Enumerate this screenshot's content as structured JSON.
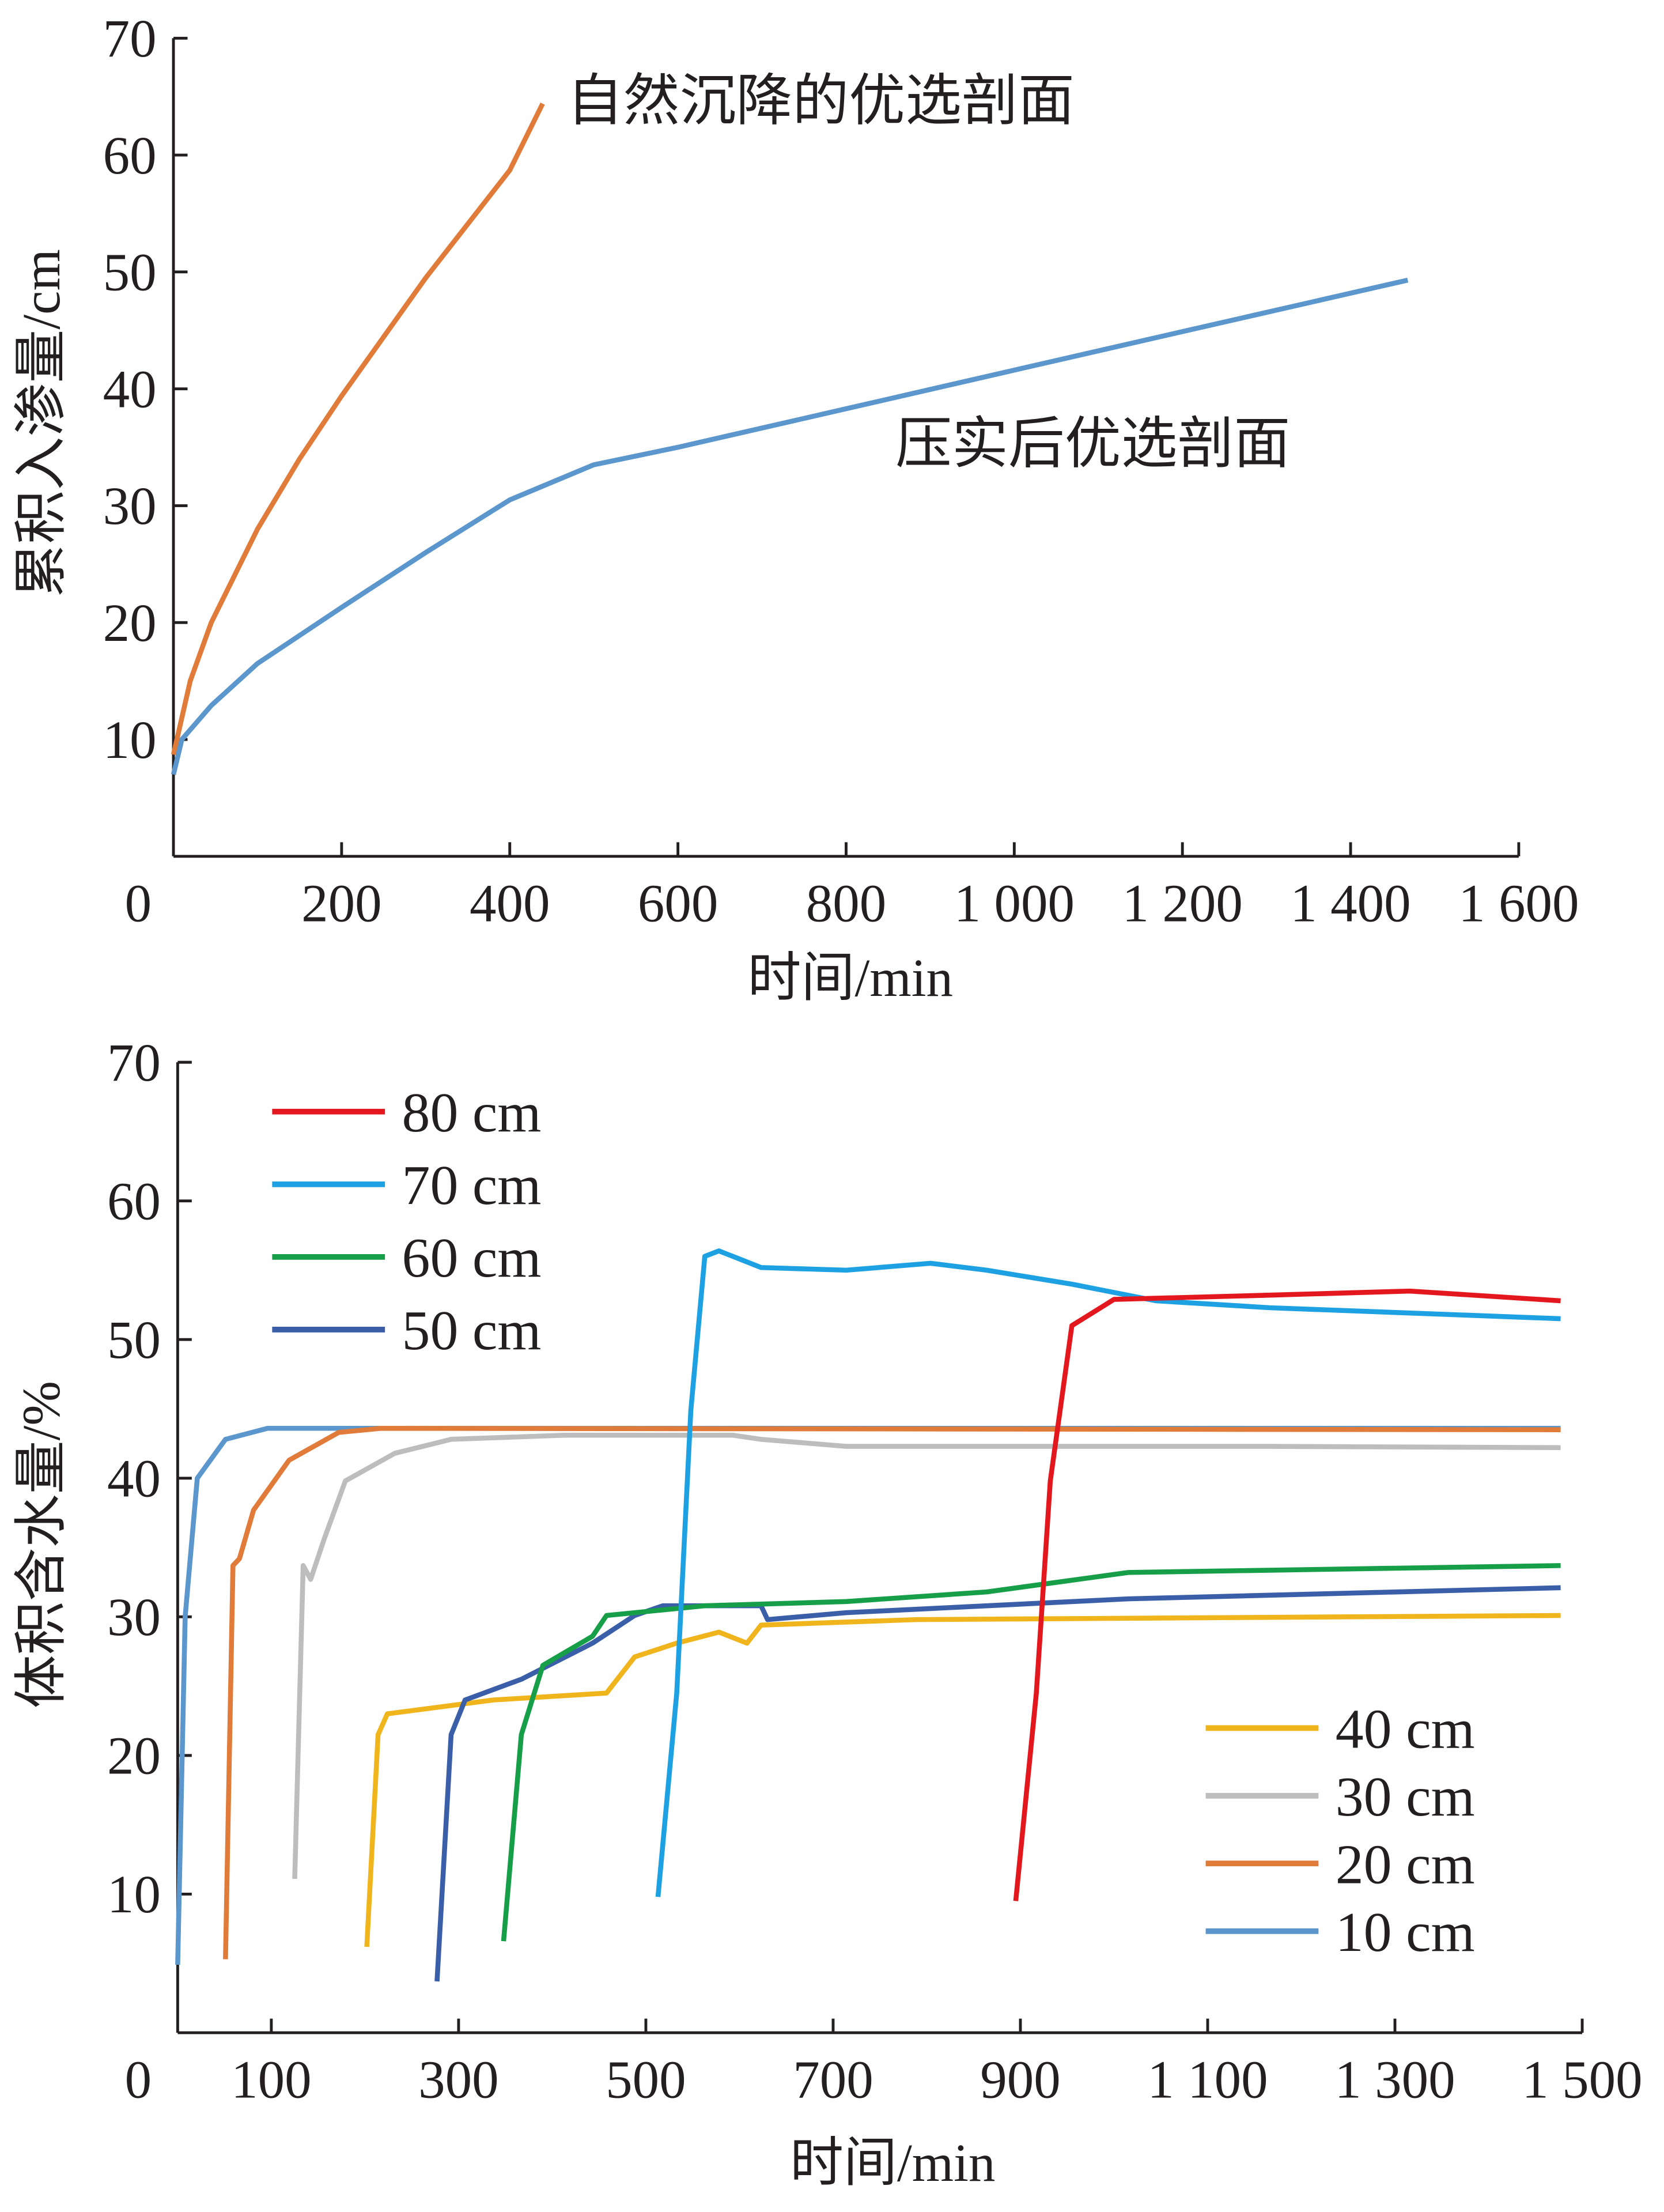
{
  "chart_data": [
    {
      "type": "line",
      "title": "",
      "xlabel": "时间/min",
      "ylabel": "累积入渗量/cm",
      "xlim": [
        0,
        1600
      ],
      "ylim": [
        0,
        70
      ],
      "xticks": [
        "0",
        "200",
        "400",
        "600",
        "800",
        "1 000",
        "1 200",
        "1 400",
        "1 600"
      ],
      "xtick_values": [
        0,
        200,
        400,
        600,
        800,
        1000,
        1200,
        1400,
        1600
      ],
      "yticks": [
        "10",
        "20",
        "30",
        "40",
        "50",
        "60",
        "70"
      ],
      "ytick_values": [
        10,
        20,
        30,
        40,
        50,
        60,
        70
      ],
      "series": [
        {
          "name": "自然沉降的优选剖面",
          "color": "#e07b39",
          "x": [
            0,
            20,
            45,
            100,
            150,
            200,
            300,
            400,
            439
          ],
          "y": [
            8.7,
            15,
            20,
            28,
            34,
            39.4,
            49.5,
            58.7,
            64.4
          ]
        },
        {
          "name": "压实后优选剖面",
          "color": "#5b96cc",
          "x": [
            0,
            10,
            45,
            100,
            200,
            300,
            400,
            500,
            600,
            800,
            1000,
            1200,
            1468
          ],
          "y": [
            7,
            10,
            12.9,
            16.5,
            21.3,
            26,
            30.5,
            33.5,
            35,
            38.3,
            41.6,
            44.9,
            49.3
          ]
        }
      ],
      "annotations": [
        "自然沉降的优选剖面",
        "压实后优选剖面"
      ]
    },
    {
      "type": "line",
      "title": "",
      "xlabel": "时间/min",
      "ylabel": "体积含水量/%",
      "xlim": [
        0,
        1500
      ],
      "ylim": [
        0,
        70
      ],
      "xticks": [
        "0",
        "100",
        "300",
        "500",
        "700",
        "900",
        "1 100",
        "1 300",
        "1 500"
      ],
      "xtick_values": [
        0,
        100,
        300,
        500,
        700,
        900,
        1100,
        1300,
        1500
      ],
      "yticks": [
        "10",
        "20",
        "30",
        "40",
        "50",
        "60",
        "70"
      ],
      "ytick_values": [
        10,
        20,
        30,
        40,
        50,
        60,
        70
      ],
      "legend": [
        {
          "label": "80 cm",
          "color": "#e3171e"
        },
        {
          "label": "70 cm",
          "color": "#1da1e2"
        },
        {
          "label": "60 cm",
          "color": "#179e48"
        },
        {
          "label": "50 cm",
          "color": "#3b5ea8"
        },
        {
          "label": "40 cm",
          "color": "#f0b51d"
        },
        {
          "label": "30 cm",
          "color": "#bdbdbd"
        },
        {
          "label": "20 cm",
          "color": "#e07b39"
        },
        {
          "label": "10 cm",
          "color": "#5b96cc"
        }
      ],
      "series": [
        {
          "name": "10 cm",
          "color": "#5b96cc",
          "x": [
            0,
            8,
            21,
            51,
            96,
            1477
          ],
          "y": [
            4.9,
            30,
            40,
            42.8,
            43.6,
            43.6
          ]
        },
        {
          "name": "20 cm",
          "color": "#e07b39",
          "x": [
            51,
            59,
            66,
            81,
            119,
            172,
            217,
            1477
          ],
          "y": [
            5.3,
            33.7,
            34.2,
            37.7,
            41.3,
            43.3,
            43.6,
            43.5
          ]
        },
        {
          "name": "30 cm",
          "color": "#bdbdbd",
          "x": [
            125,
            134,
            142,
            157,
            179,
            232,
            292,
            413,
            593,
            623,
            714,
            1166,
            1477
          ],
          "y": [
            11.1,
            33.7,
            32.7,
            35.7,
            39.8,
            41.8,
            42.8,
            43.1,
            43.1,
            42.8,
            42.3,
            42.3,
            42.2
          ]
        },
        {
          "name": "40 cm",
          "color": "#f0b51d",
          "x": [
            202,
            214,
            224,
            337,
            458,
            488,
            533,
            578,
            608,
            623,
            789,
            1477
          ],
          "y": [
            6.2,
            21.5,
            23,
            24,
            24.5,
            27.1,
            28.1,
            28.9,
            28.1,
            29.4,
            29.8,
            30.1
          ]
        },
        {
          "name": "50 cm",
          "color": "#3b5ea8",
          "x": [
            277,
            292,
            307,
            367,
            443,
            488,
            518,
            623,
            630,
            714,
            1015,
            1477
          ],
          "y": [
            3.7,
            21.5,
            24,
            25.5,
            28.1,
            30.1,
            30.8,
            30.8,
            29.8,
            30.3,
            31.3,
            32.1
          ]
        },
        {
          "name": "60 cm",
          "color": "#179e48",
          "x": [
            348,
            367,
            390,
            443,
            458,
            563,
            714,
            864,
            1015,
            1477
          ],
          "y": [
            6.6,
            21.5,
            26.5,
            28.6,
            30.1,
            30.8,
            31.1,
            31.8,
            33.2,
            33.7
          ]
        },
        {
          "name": "70 cm",
          "color": "#1da1e2",
          "x": [
            513,
            533,
            548,
            563,
            578,
            623,
            714,
            804,
            864,
            955,
            1045,
            1166,
            1477
          ],
          "y": [
            9.8,
            24.5,
            44.9,
            56,
            56.4,
            55.2,
            55,
            55.5,
            55,
            54,
            52.8,
            52.3,
            51.5
          ]
        },
        {
          "name": "80 cm",
          "color": "#e3171e",
          "x": [
            895,
            917,
            932,
            955,
            1000,
            1166,
            1316,
            1477
          ],
          "y": [
            9.5,
            24.5,
            39.8,
            51,
            52.9,
            53.2,
            53.5,
            52.8
          ]
        }
      ]
    }
  ]
}
